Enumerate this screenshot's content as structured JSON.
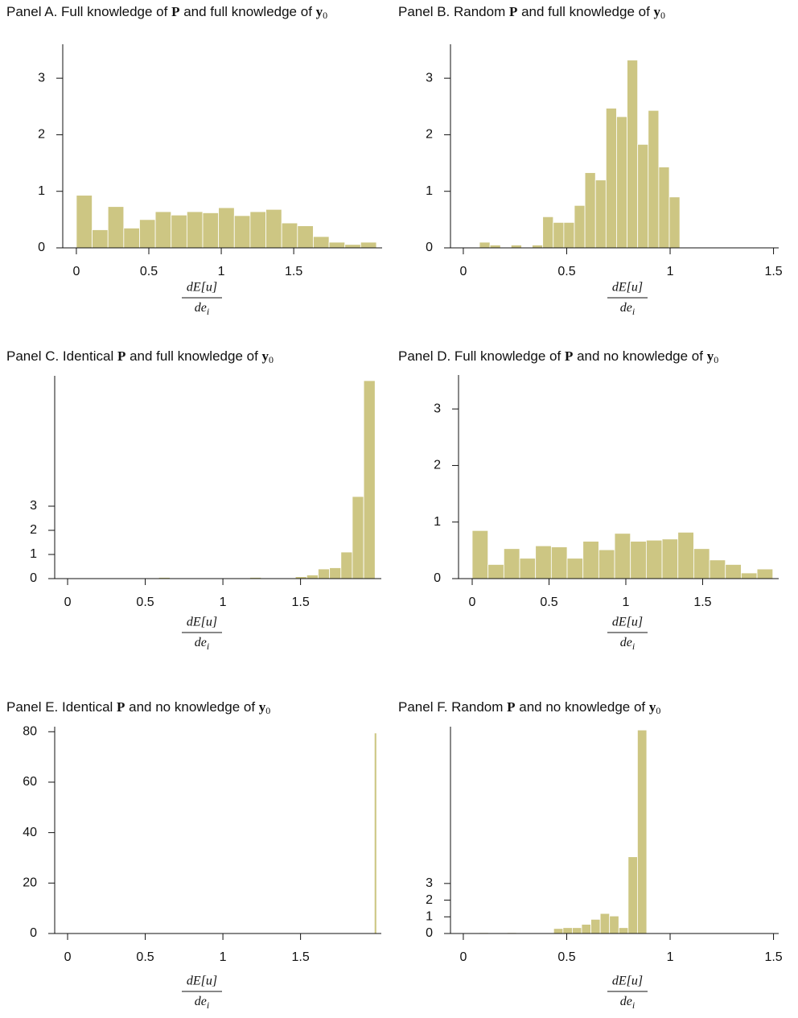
{
  "chart_data": [
    {
      "type": "histogram",
      "title_parts": [
        "Panel A. Full knowledge of ",
        "P",
        " and full knowledge of ",
        "y",
        "0"
      ],
      "x_label": {
        "numerator": "dE[u]",
        "denominator": "de",
        "denominator_subscript": "i"
      },
      "color": "#cdc683",
      "bins": [
        0,
        0.109,
        0.218,
        0.327,
        0.436,
        0.545,
        0.654,
        0.763,
        0.872,
        0.981,
        1.09,
        1.199,
        1.308,
        1.417,
        1.526,
        1.635,
        1.744,
        1.853,
        1.962,
        2.071
      ],
      "values": [
        0.93,
        0.32,
        0.73,
        0.35,
        0.5,
        0.64,
        0.58,
        0.64,
        0.62,
        0.71,
        0.57,
        0.64,
        0.68,
        0.44,
        0.39,
        0.2,
        0.1,
        0.06,
        0.1
      ],
      "xlim": [
        -0.094,
        2.11
      ],
      "ylim": [
        0,
        3.6
      ],
      "xticks": [
        0,
        0.5,
        1,
        1.5
      ],
      "yticks": [
        0,
        1,
        2,
        3
      ]
    },
    {
      "type": "histogram",
      "title_parts": [
        "Panel B. Random ",
        "P",
        " and full knowledge of ",
        "y",
        "0"
      ],
      "x_label": {
        "numerator": "dE[u]",
        "denominator": "de",
        "denominator_subscript": "i"
      },
      "color": "#cdc683",
      "bins": [
        0.078,
        0.129,
        0.18,
        0.231,
        0.282,
        0.333,
        0.384,
        0.435,
        0.486,
        0.537,
        0.588,
        0.639,
        0.69,
        0.741,
        0.792,
        0.843,
        0.894,
        0.945,
        0.996,
        1.047
      ],
      "values": [
        0.1,
        0.05,
        0,
        0.05,
        0,
        0.05,
        0.55,
        0.45,
        0.45,
        0.75,
        1.33,
        1.2,
        2.47,
        2.32,
        3.32,
        1.83,
        2.43,
        1.43,
        0.9
      ],
      "xlim": [
        -0.062,
        1.525
      ],
      "ylim": [
        0,
        3.6
      ],
      "xticks": [
        0,
        0.5,
        1,
        1.5
      ],
      "yticks": [
        0,
        1,
        2,
        3
      ]
    },
    {
      "type": "histogram",
      "title_parts": [
        "Panel C. Identical ",
        "P",
        " and full knowledge of ",
        "y",
        "0"
      ],
      "x_label": {
        "numerator": "dE[u]",
        "denominator": "de",
        "denominator_subscript": "i"
      },
      "color": "#cdc683",
      "bins": [
        0,
        0.0733,
        0.1467,
        0.22,
        0.2933,
        0.3667,
        0.44,
        0.5133,
        0.5867,
        0.66,
        0.7333,
        0.8067,
        0.88,
        0.9533,
        1.0267,
        1.1,
        1.1733,
        1.2467,
        1.32,
        1.3933,
        1.4667,
        1.54,
        1.6133,
        1.6867,
        1.76,
        1.8333,
        1.9067,
        1.98
      ],
      "values": [
        0,
        0,
        0,
        0,
        0,
        0,
        0,
        0,
        0.05,
        0,
        0,
        0,
        0,
        0,
        0,
        0,
        0.05,
        0,
        0,
        0.03,
        0.08,
        0.15,
        0.4,
        0.45,
        1.1,
        3.4,
        8.2
      ],
      "xlim": [
        -0.083,
        2.02
      ],
      "ylim": [
        0,
        8.4
      ],
      "xticks": [
        0,
        0.5,
        1,
        1.5
      ],
      "yticks": [
        0,
        1,
        2,
        3
      ]
    },
    {
      "type": "histogram",
      "title_parts": [
        "Panel D. Full knowledge of ",
        "P",
        " and no knowledge of ",
        "y",
        "0"
      ],
      "x_label": {
        "numerator": "dE[u]",
        "denominator": "de",
        "denominator_subscript": "i"
      },
      "color": "#cdc683",
      "bins": [
        0,
        0.103,
        0.206,
        0.309,
        0.412,
        0.515,
        0.618,
        0.721,
        0.824,
        0.927,
        1.03,
        1.133,
        1.236,
        1.339,
        1.442,
        1.545,
        1.648,
        1.751,
        1.854,
        1.957
      ],
      "values": [
        0.85,
        0.25,
        0.53,
        0.36,
        0.58,
        0.56,
        0.36,
        0.66,
        0.51,
        0.8,
        0.66,
        0.68,
        0.7,
        0.82,
        0.53,
        0.33,
        0.25,
        0.1,
        0.17
      ],
      "xlim": [
        -0.089,
        1.995
      ],
      "ylim": [
        0,
        3.6
      ],
      "xticks": [
        0,
        0.5,
        1,
        1.5
      ],
      "yticks": [
        0,
        1,
        2,
        3
      ]
    },
    {
      "type": "histogram",
      "title_parts": [
        "Panel E. Identical ",
        "P",
        " and no knowledge of ",
        "y",
        "0"
      ],
      "x_label": {
        "numerator": "dE[u]",
        "denominator": "de",
        "denominator_subscript": "i"
      },
      "color": "#cdc683",
      "bins": [
        1.975,
        1.99
      ],
      "values": [
        79.5
      ],
      "xlim": [
        -0.083,
        2.02
      ],
      "ylim": [
        0,
        82
      ],
      "xticks": [
        0,
        0.5,
        1,
        1.5
      ],
      "yticks": [
        0,
        20,
        40,
        60,
        80
      ]
    },
    {
      "type": "histogram",
      "title_parts": [
        "Panel F. Random ",
        "P",
        " and no knowledge of ",
        "y",
        "0"
      ],
      "x_label": {
        "numerator": "dE[u]",
        "denominator": "de",
        "denominator_subscript": "i"
      },
      "color": "#cdc683",
      "bins": [
        0.077,
        0.122,
        0.167,
        0.212,
        0.257,
        0.302,
        0.347,
        0.392,
        0.437,
        0.482,
        0.527,
        0.572,
        0.617,
        0.662,
        0.707,
        0.752,
        0.797,
        0.842,
        0.887
      ],
      "values": [
        0.05,
        0,
        0,
        0.05,
        0,
        0,
        0,
        0,
        0.3,
        0.35,
        0.35,
        0.55,
        0.85,
        1.2,
        1.05,
        0.35,
        4.6,
        12.2
      ],
      "xlim": [
        -0.062,
        1.525
      ],
      "ylim": [
        0,
        12.4
      ],
      "xticks": [
        0,
        0.5,
        1,
        1.5
      ],
      "yticks": [
        0,
        1,
        2,
        3
      ]
    }
  ]
}
